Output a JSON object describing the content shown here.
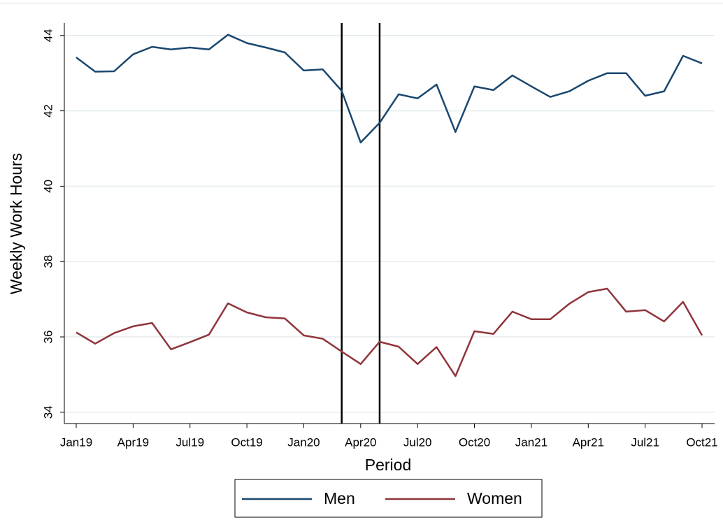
{
  "chart_data": {
    "type": "line",
    "y_label": "Weekly Work Hours",
    "x_label": "Period",
    "categories": [
      "Jan19",
      null,
      null,
      "Apr19",
      null,
      null,
      "Jul19",
      null,
      null,
      "Oct19",
      null,
      null,
      "Jan20",
      null,
      null,
      "Apr20",
      null,
      null,
      "Jul20",
      null,
      null,
      "Oct20",
      null,
      null,
      "Jan21",
      null,
      null,
      "Apr21",
      null,
      null,
      "Jul21",
      null,
      null,
      "Oct21"
    ],
    "series": [
      {
        "name": "Men",
        "color": "#1a476f",
        "values": [
          43.42,
          43.04,
          43.05,
          43.5,
          43.7,
          43.63,
          43.68,
          43.63,
          44.02,
          43.8,
          43.68,
          43.55,
          43.07,
          43.1,
          42.53,
          41.16,
          41.68,
          42.44,
          42.33,
          42.7,
          41.44,
          42.65,
          42.55,
          42.94,
          42.65,
          42.37,
          42.52,
          42.8,
          43.0,
          43.0,
          42.4,
          42.52,
          43.46,
          43.26
        ]
      },
      {
        "name": "Women",
        "color": "#90353b",
        "values": [
          36.12,
          35.82,
          36.1,
          36.28,
          36.37,
          35.67,
          35.86,
          36.06,
          36.89,
          36.65,
          36.52,
          36.49,
          36.04,
          35.95,
          35.61,
          35.28,
          35.87,
          35.74,
          35.28,
          35.73,
          34.96,
          36.15,
          36.08,
          36.67,
          36.47,
          36.47,
          36.88,
          37.19,
          37.28,
          36.67,
          36.71,
          36.41,
          36.93,
          36.04
        ]
      }
    ],
    "vlines": [
      14,
      16
    ],
    "ylim": [
      33.7,
      44.33
    ],
    "yticks": [
      34,
      36,
      38,
      40,
      42,
      44
    ],
    "grid": true,
    "legend": "bottom"
  }
}
